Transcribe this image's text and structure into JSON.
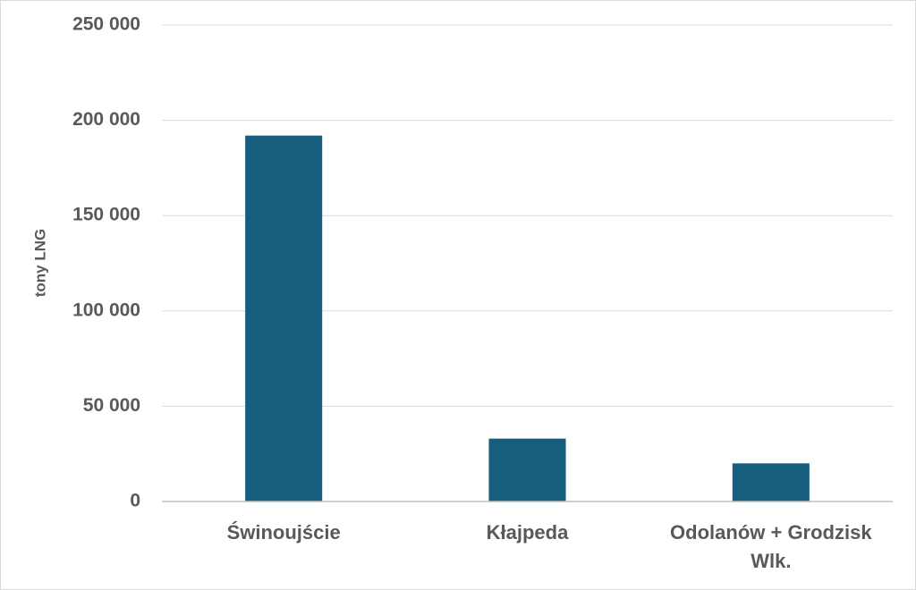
{
  "chart_data": {
    "type": "bar",
    "y_label": "tony LNG",
    "categories": [
      "Świnoujście",
      "Kłajpeda",
      "Odolanów + Grodzisk Wlk."
    ],
    "values": [
      192000,
      33000,
      20000
    ],
    "color": "#175d7e",
    "ylim": [
      0,
      250000
    ],
    "yticks": [
      0,
      {
        "value": 50000,
        "label": "50 000"
      },
      {
        "value": 100000,
        "label": "100 000"
      },
      {
        "value": 150000,
        "label": "150 000"
      },
      {
        "value": 200000,
        "label": "200 000"
      },
      {
        "value": 250000,
        "label": "250 000"
      }
    ],
    "grid": true
  }
}
